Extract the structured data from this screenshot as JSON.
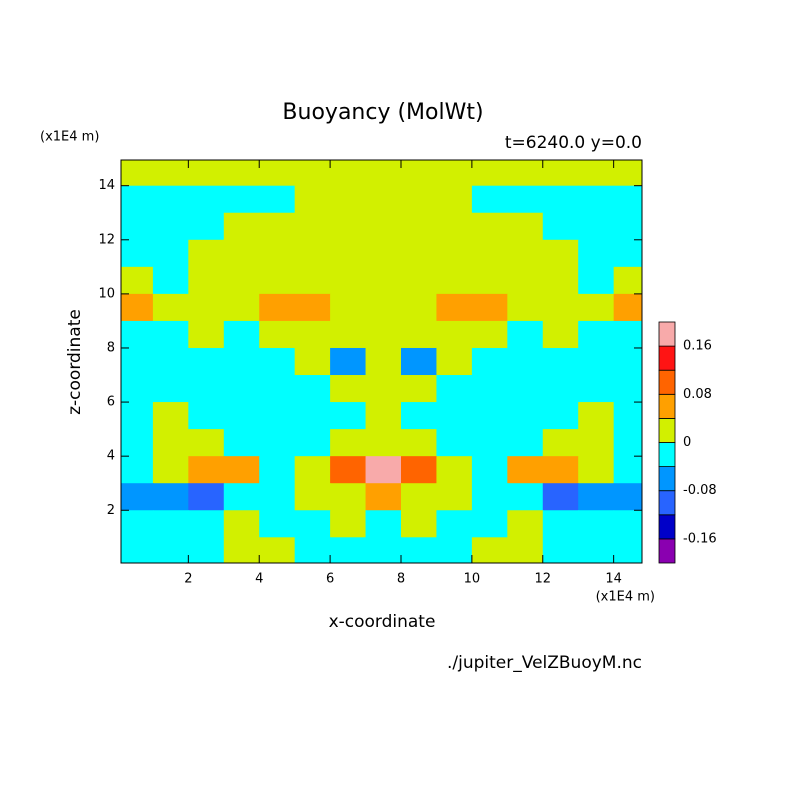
{
  "chart_data": {
    "type": "contour",
    "title": "Buoyancy (MolWt)",
    "subtitle": "t=6240.0 y=0.0",
    "x_label": "x-coordinate",
    "y_label": "z-coordinate",
    "x_units": "(x1E4 m)",
    "y_units": "(x1E4 m)",
    "footer": "./jupiter_VelZBuoyM.nc",
    "xlim": [
      0.1,
      14.8
    ],
    "ylim": [
      0.05,
      14.95
    ],
    "xticks": [
      2,
      4,
      6,
      8,
      10,
      12,
      14
    ],
    "yticks": [
      2,
      4,
      6,
      8,
      10,
      12,
      14
    ],
    "x": [
      0.5,
      1.5,
      2.5,
      3.5,
      4.5,
      5.5,
      6.5,
      7.5,
      8.5,
      9.5,
      10.5,
      11.5,
      12.5,
      13.5,
      14.5
    ],
    "z": [
      14.5,
      13.5,
      12.5,
      11.5,
      10.5,
      9.5,
      8.5,
      7.5,
      6.5,
      5.5,
      4.5,
      3.5,
      2.5,
      1.5,
      0.5
    ],
    "values": [
      [
        0.02,
        0.02,
        0.02,
        0.02,
        0.02,
        0.02,
        0.02,
        0.02,
        0.02,
        0.02,
        0.02,
        0.02,
        0.02,
        0.02,
        0.02
      ],
      [
        -0.02,
        -0.02,
        -0.02,
        -0.02,
        -0.02,
        0.02,
        0.02,
        0.02,
        0.02,
        0.02,
        -0.02,
        -0.02,
        -0.02,
        -0.02,
        -0.02
      ],
      [
        -0.02,
        -0.02,
        -0.02,
        0.02,
        0.02,
        0.02,
        0.02,
        0.02,
        0.02,
        0.02,
        0.02,
        0.02,
        -0.02,
        -0.02,
        -0.02
      ],
      [
        -0.02,
        -0.02,
        0.02,
        0.02,
        0.02,
        0.02,
        0.02,
        0.02,
        0.02,
        0.02,
        0.02,
        0.02,
        0.02,
        -0.02,
        -0.02
      ],
      [
        0.02,
        -0.02,
        0.02,
        0.02,
        0.02,
        0.02,
        0.02,
        0.02,
        0.02,
        0.02,
        0.02,
        0.02,
        0.02,
        -0.02,
        0.02
      ],
      [
        0.06,
        0.02,
        0.02,
        0.02,
        0.06,
        0.06,
        0.02,
        0.02,
        0.02,
        0.06,
        0.06,
        0.02,
        0.02,
        0.02,
        0.06
      ],
      [
        -0.02,
        -0.02,
        0.02,
        -0.02,
        0.02,
        0.02,
        0.02,
        0.02,
        0.02,
        0.02,
        0.02,
        -0.02,
        0.02,
        -0.02,
        -0.02
      ],
      [
        -0.02,
        -0.02,
        -0.02,
        -0.02,
        -0.02,
        0.02,
        -0.06,
        0.02,
        -0.06,
        0.02,
        -0.02,
        -0.02,
        -0.02,
        -0.02,
        -0.02
      ],
      [
        -0.02,
        -0.02,
        -0.02,
        -0.02,
        -0.02,
        -0.02,
        0.02,
        0.02,
        0.02,
        -0.02,
        -0.02,
        -0.02,
        -0.02,
        -0.02,
        -0.02
      ],
      [
        -0.02,
        0.02,
        -0.02,
        -0.02,
        -0.02,
        -0.02,
        -0.02,
        0.02,
        -0.02,
        -0.02,
        -0.02,
        -0.02,
        -0.02,
        0.02,
        -0.02
      ],
      [
        -0.02,
        0.02,
        0.02,
        -0.02,
        -0.02,
        -0.02,
        0.02,
        0.02,
        0.02,
        -0.02,
        -0.02,
        -0.02,
        0.02,
        0.02,
        -0.02
      ],
      [
        -0.02,
        0.02,
        0.06,
        0.06,
        -0.02,
        0.02,
        0.1,
        0.18,
        0.1,
        0.02,
        -0.02,
        0.06,
        0.06,
        0.02,
        -0.02
      ],
      [
        -0.06,
        -0.06,
        -0.1,
        -0.02,
        -0.02,
        0.02,
        0.02,
        0.06,
        0.02,
        0.02,
        -0.02,
        -0.02,
        -0.1,
        -0.06,
        -0.06
      ],
      [
        -0.02,
        -0.02,
        -0.02,
        0.02,
        -0.02,
        -0.02,
        0.02,
        -0.02,
        0.02,
        -0.02,
        -0.02,
        0.02,
        -0.02,
        -0.02,
        -0.02
      ],
      [
        -0.02,
        -0.02,
        -0.02,
        0.02,
        0.02,
        -0.02,
        -0.02,
        -0.02,
        -0.02,
        -0.02,
        0.02,
        0.02,
        -0.02,
        -0.02,
        -0.02
      ]
    ],
    "levels": [
      -0.2,
      -0.16,
      -0.12,
      -0.08,
      -0.04,
      0,
      0.04,
      0.08,
      0.12,
      0.16,
      0.2
    ],
    "colors": [
      "#8a00b0",
      "#0000c8",
      "#2864ff",
      "#0096ff",
      "#00ffff",
      "#d2f000",
      "#ffa000",
      "#ff6400",
      "#ff1414",
      "#f8aaaa"
    ],
    "colorbar_ticks": [
      0.16,
      0.08,
      0,
      -0.08,
      -0.16
    ]
  }
}
